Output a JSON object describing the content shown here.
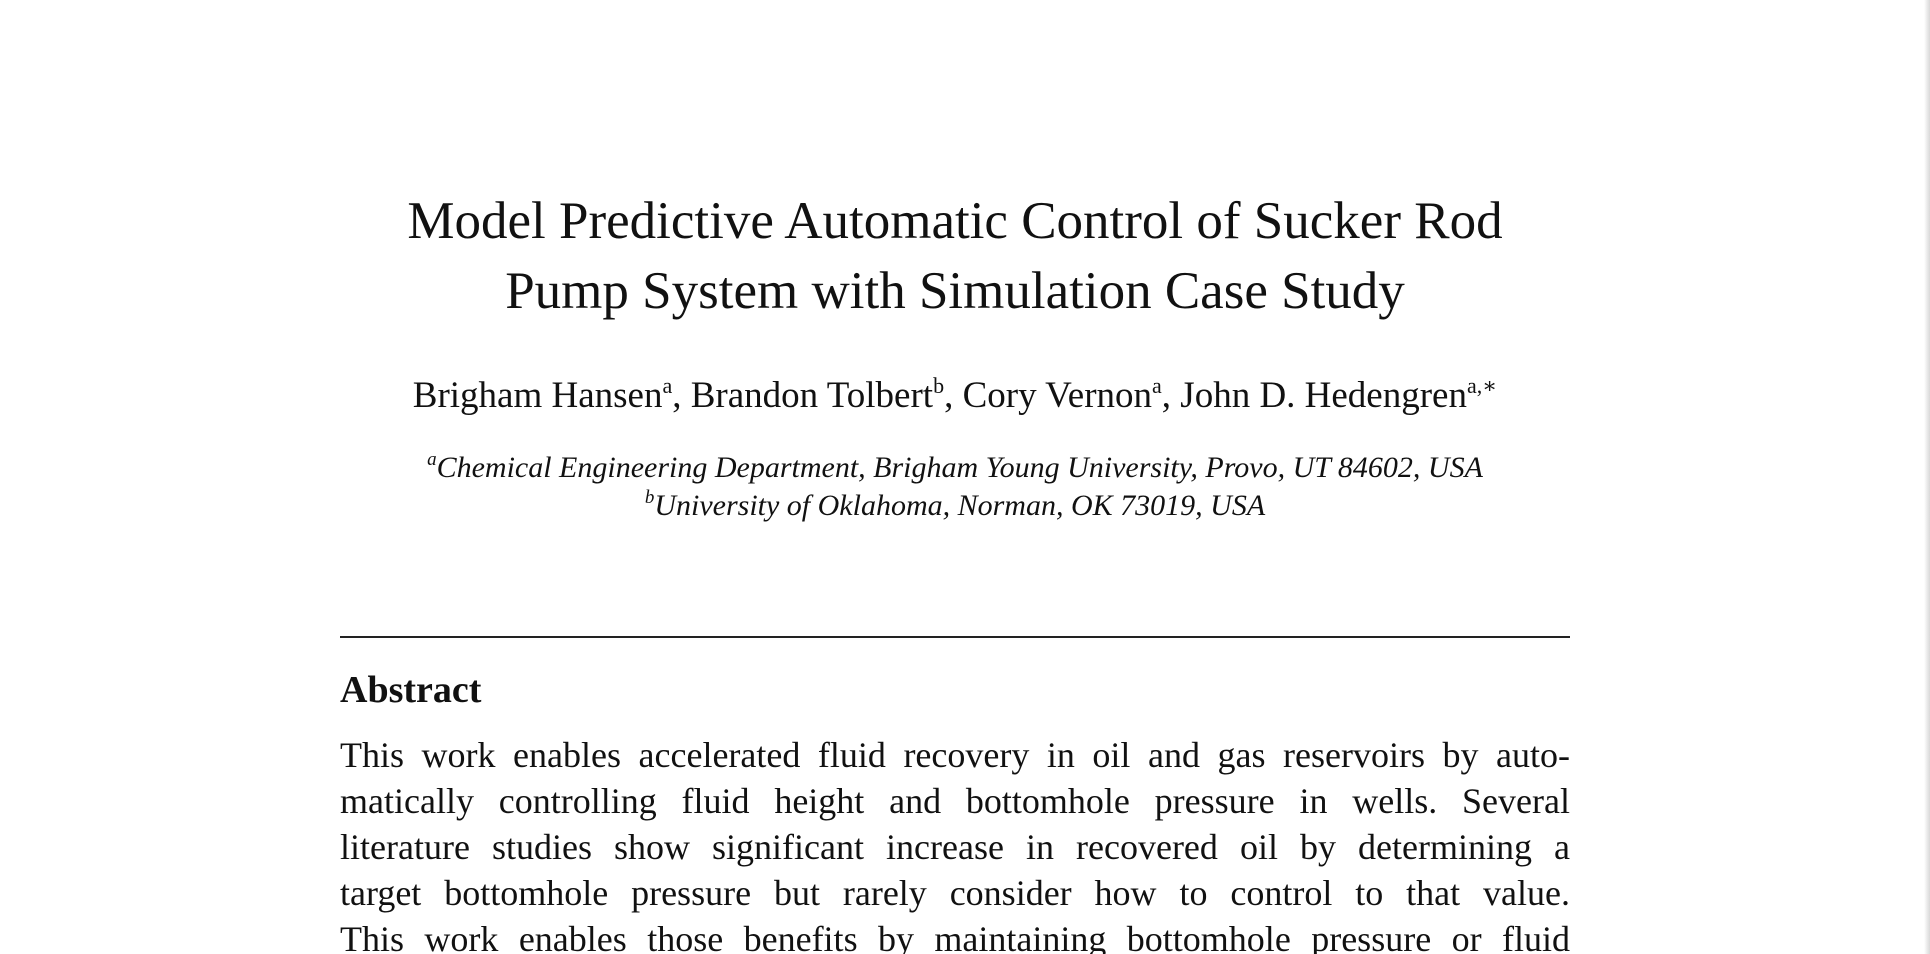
{
  "paper": {
    "title_lines": [
      "Model Predictive Automatic Control of Sucker Rod",
      "Pump System with Simulation Case Study"
    ],
    "authors": [
      {
        "name": "Brigham Hansen",
        "sup": "a"
      },
      {
        "name": "Brandon Tolbert",
        "sup": "b"
      },
      {
        "name": "Cory Vernon",
        "sup": "a"
      },
      {
        "name": "John D. Hedengren",
        "sup": "a,∗"
      }
    ],
    "author_separator": ", ",
    "affiliations": [
      {
        "mark": "a",
        "text": "Chemical Engineering Department, Brigham Young University, Provo, UT 84602, USA"
      },
      {
        "mark": "b",
        "text": "University of Oklahoma, Norman, OK 73019, USA"
      }
    ],
    "abstract": {
      "heading": "Abstract",
      "lines": [
        "This work enables accelerated fluid recovery in oil and gas reservoirs by auto-",
        "matically controlling fluid height and bottomhole pressure in wells. Several",
        "literature studies show significant increase in recovered oil by determining a",
        "target bottomhole pressure but rarely consider how to control to that value.",
        "This work enables those benefits by maintaining bottomhole pressure or fluid"
      ]
    }
  }
}
